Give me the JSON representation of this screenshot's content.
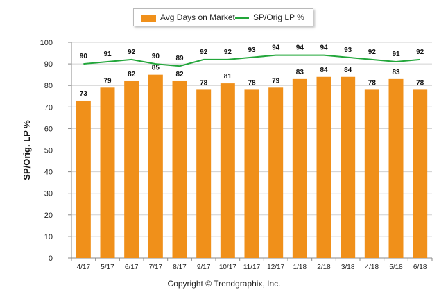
{
  "chart_data": {
    "type": "bar",
    "categories": [
      "4/17",
      "5/17",
      "6/17",
      "7/17",
      "8/17",
      "9/17",
      "10/17",
      "11/17",
      "12/17",
      "1/18",
      "2/18",
      "3/18",
      "4/18",
      "5/18",
      "6/18"
    ],
    "series": [
      {
        "name": "Avg Days on Market",
        "kind": "bar",
        "color": "#f0901a",
        "values": [
          73,
          79,
          82,
          85,
          82,
          78,
          81,
          78,
          79,
          83,
          84,
          84,
          78,
          83,
          78
        ]
      },
      {
        "name": "SP/Orig LP %",
        "kind": "line",
        "color": "#22a63a",
        "values": [
          90,
          91,
          92,
          90,
          89,
          92,
          92,
          93,
          94,
          94,
          94,
          93,
          92,
          91,
          92
        ]
      }
    ],
    "ylabel": "SP/Orig. LP %",
    "ylim": [
      0,
      100
    ],
    "yticks": [
      0,
      10,
      20,
      30,
      40,
      50,
      60,
      70,
      80,
      90,
      100
    ],
    "grid": true,
    "legend_position": "top-center"
  },
  "footer": {
    "copyright": "Copyright © Trendgraphix, Inc."
  }
}
